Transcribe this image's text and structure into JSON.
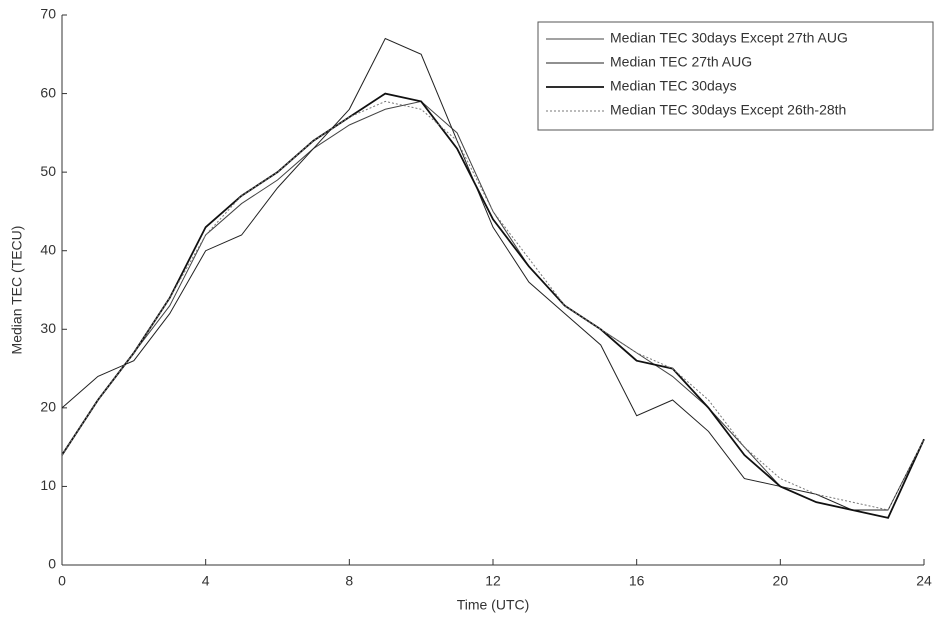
{
  "chart_data": {
    "type": "line",
    "x_label": "Time (UTC)",
    "y_label": "Median TEC (TECU)",
    "x": [
      0,
      1,
      2,
      3,
      4,
      5,
      6,
      7,
      8,
      9,
      10,
      11,
      12,
      13,
      14,
      15,
      16,
      17,
      18,
      19,
      20,
      21,
      22,
      23,
      24
    ],
    "series": [
      {
        "name": "Median TEC 30days Except 27th AUG",
        "color": "#444444",
        "style": "solid",
        "width": 1,
        "values": [
          14,
          21,
          27,
          33,
          42,
          46,
          49,
          53,
          56,
          58,
          59,
          55,
          45,
          38,
          33,
          30,
          27,
          24,
          20,
          15,
          10,
          8,
          7,
          6,
          16
        ]
      },
      {
        "name": "Median TEC 27th AUG",
        "color": "#222222",
        "style": "solid",
        "width": 1,
        "values": [
          20,
          24,
          26,
          32,
          40,
          42,
          48,
          53,
          58,
          67,
          65,
          54,
          43,
          36,
          32,
          28,
          19,
          21,
          17,
          11,
          10,
          9,
          7,
          7,
          16
        ]
      },
      {
        "name": "Median TEC 30days",
        "color": "#111111",
        "style": "solid",
        "width": 1.8,
        "values": [
          14,
          21,
          27,
          34,
          43,
          47,
          50,
          54,
          57,
          60,
          59,
          53,
          44,
          38,
          33,
          30,
          26,
          25,
          20,
          14,
          10,
          8,
          7,
          6,
          16
        ]
      },
      {
        "name": "Median TEC 30days Except 26th-28th",
        "color": "#777777",
        "style": "dotted",
        "width": 1,
        "values": [
          14,
          21,
          27,
          34,
          42,
          47,
          50,
          54,
          57,
          59,
          58,
          54,
          45,
          39,
          33,
          30,
          27,
          25,
          21,
          15,
          11,
          9,
          8,
          7,
          16
        ]
      }
    ],
    "xlim": [
      0,
      24
    ],
    "xticks": [
      0,
      4,
      8,
      12,
      16,
      20,
      24
    ],
    "ylim": [
      0,
      70
    ],
    "yticks": [
      0,
      10,
      20,
      30,
      40,
      50,
      60,
      70
    ],
    "legend": "upper right"
  }
}
